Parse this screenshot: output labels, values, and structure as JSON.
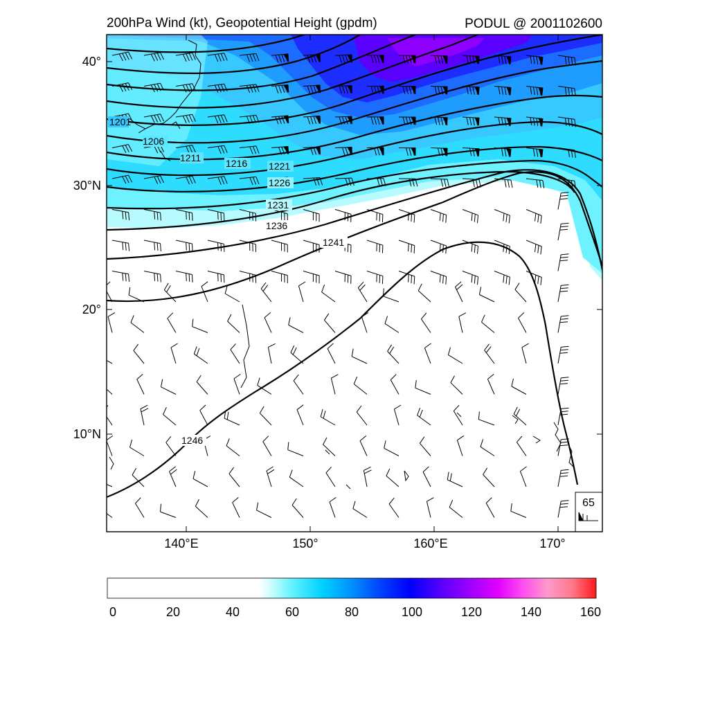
{
  "header": {
    "title": "200hPa Wind (kt), Geopotential Height (gpdm)",
    "case_label": "PODUL @ 2001102600"
  },
  "map": {
    "lon_range": [
      134,
      174
    ],
    "lat_range": [
      2,
      42
    ],
    "x_ticks": [
      "140°E",
      "150°",
      "160°E",
      "170°"
    ],
    "y_ticks": [
      "40°",
      "30°N",
      "20°",
      "10°N"
    ],
    "contour_labels": [
      "1201",
      "1206",
      "1211",
      "1216",
      "1221",
      "1226",
      "1231",
      "1236",
      "1241",
      "1246"
    ],
    "contour_interval_gpdm": 5,
    "reference_vector_label": "65",
    "colors": {
      "jet_core": "#8a00ff",
      "strong": "#1a1aff",
      "medium": "#1a9bff",
      "weak": "#2ee0ff",
      "edge": "#b8fbff",
      "contour": "#000000"
    }
  },
  "colorbar": {
    "tick_labels": [
      "0",
      "20",
      "40",
      "60",
      "80",
      "100",
      "120",
      "140",
      "160"
    ],
    "range": [
      0,
      160
    ],
    "colors": [
      "#ffffff",
      "#d4ffff",
      "#66f2ff",
      "#00d4ff",
      "#008cff",
      "#0040ff",
      "#0000ff",
      "#5500ff",
      "#9900ff",
      "#cc00ff",
      "#ff33ff",
      "#ff77dd",
      "#ff99bb",
      "#ff8899",
      "#ff3333",
      "#ff0000"
    ]
  }
}
